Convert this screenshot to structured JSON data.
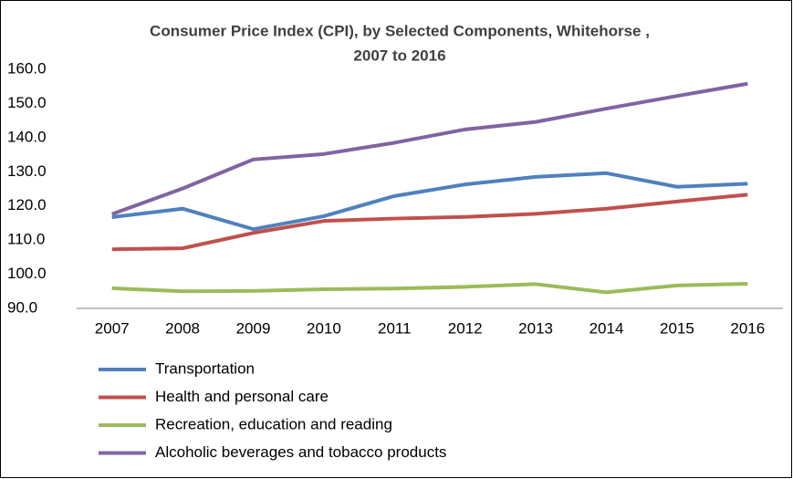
{
  "chart_data": {
    "type": "line",
    "title": [
      "Consumer Price Index (CPI), by Selected Components, Whitehorse ,",
      "2007 to 2016"
    ],
    "categories": [
      "2007",
      "2008",
      "2009",
      "2010",
      "2011",
      "2012",
      "2013",
      "2014",
      "2015",
      "2016"
    ],
    "series": [
      {
        "name": "Transportation",
        "color": "#4f81bd",
        "values": [
          116.7,
          119.2,
          113.2,
          117.0,
          122.9,
          126.3,
          128.5,
          129.6,
          125.6,
          126.5
        ]
      },
      {
        "name": "Health and personal care",
        "color": "#c0504d",
        "values": [
          107.3,
          107.6,
          112.1,
          115.6,
          116.3,
          116.8,
          117.7,
          119.2,
          121.3,
          123.3
        ]
      },
      {
        "name": "Recreation, education and reading",
        "color": "#9bbb59",
        "values": [
          95.9,
          95.0,
          95.1,
          95.6,
          95.8,
          96.3,
          97.1,
          94.7,
          96.7,
          97.2
        ]
      },
      {
        "name": "Alcoholic beverages and tobacco products",
        "color": "#8064a2",
        "values": [
          117.6,
          125.1,
          133.6,
          135.2,
          138.5,
          142.4,
          144.6,
          148.5,
          152.2,
          155.8
        ]
      }
    ],
    "ylim": [
      90,
      160
    ],
    "yticks": [
      {
        "value": 90,
        "label": "90.0"
      },
      {
        "value": 100,
        "label": "100.0"
      },
      {
        "value": 110,
        "label": "110.0"
      },
      {
        "value": 120,
        "label": "120.0"
      },
      {
        "value": 130,
        "label": "130.0"
      },
      {
        "value": 140,
        "label": "140.0"
      },
      {
        "value": 150,
        "label": "150.0"
      },
      {
        "value": 160,
        "label": "160.0"
      }
    ],
    "grid": false,
    "legend": "bottom"
  }
}
